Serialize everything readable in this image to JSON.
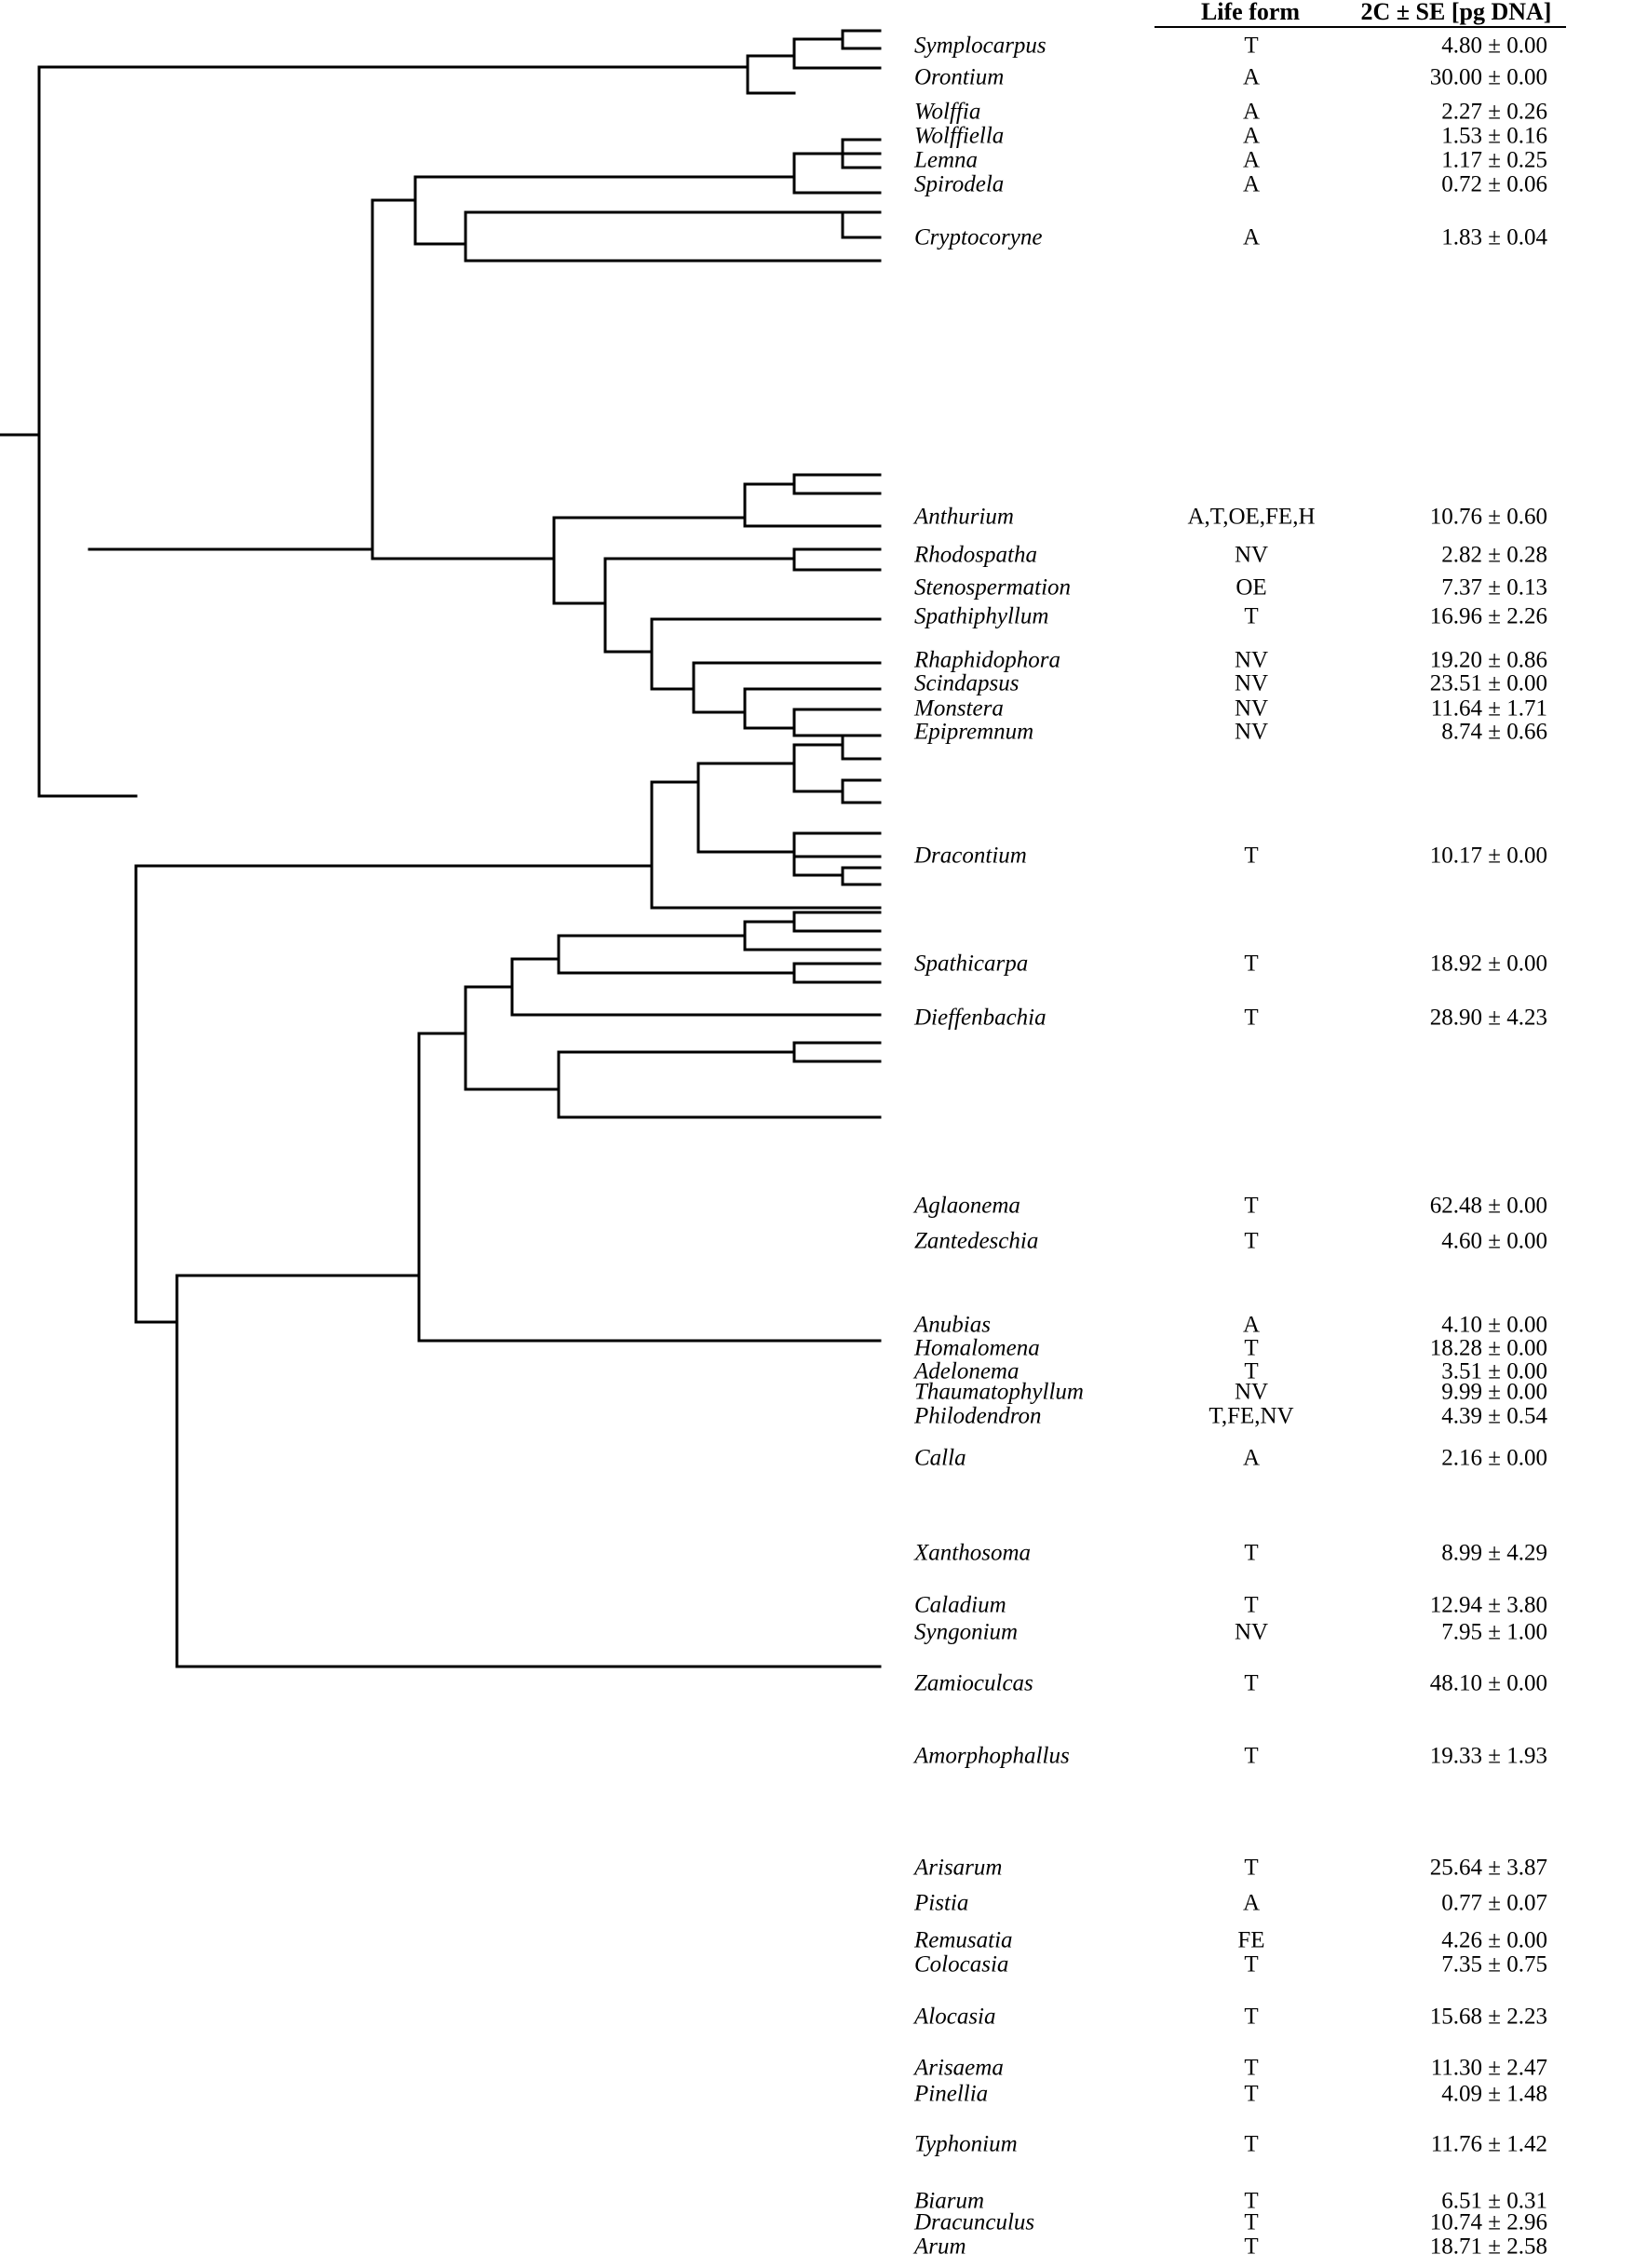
{
  "table_header": {
    "life_form": "Life form",
    "genome_size": "2C ± SE [pg DNA]"
  },
  "taxa": [
    {
      "genus": "Symplocarpus",
      "life_form": "T",
      "genome_size": "4.80 ± 0.00"
    },
    {
      "genus": "Orontium",
      "life_form": "A",
      "genome_size": "30.00 ± 0.00"
    },
    {
      "genus": "Wolffia",
      "life_form": "A",
      "genome_size": "2.27 ± 0.26"
    },
    {
      "genus": "Wolffiella",
      "life_form": "A",
      "genome_size": "1.53 ± 0.16"
    },
    {
      "genus": "Lemna",
      "life_form": "A",
      "genome_size": "1.17 ± 0.25"
    },
    {
      "genus": "Spirodela",
      "life_form": "A",
      "genome_size": "0.72 ± 0.06"
    },
    {
      "genus": "Cryptocoryne",
      "life_form": "A",
      "genome_size": "1.83 ± 0.04"
    },
    {
      "genus": "Anthurium",
      "life_form": "A,T,OE,FE,H",
      "genome_size": "10.76 ± 0.60"
    },
    {
      "genus": "Rhodospatha",
      "life_form": "NV",
      "genome_size": "2.82 ± 0.28"
    },
    {
      "genus": "Stenospermation",
      "life_form": "OE",
      "genome_size": "7.37 ± 0.13"
    },
    {
      "genus": "Spathiphyllum",
      "life_form": "T",
      "genome_size": "16.96 ± 2.26"
    },
    {
      "genus": "Rhaphidophora",
      "life_form": "NV",
      "genome_size": "19.20 ± 0.86"
    },
    {
      "genus": "Scindapsus",
      "life_form": "NV",
      "genome_size": "23.51 ± 0.00"
    },
    {
      "genus": "Monstera",
      "life_form": "NV",
      "genome_size": "11.64 ± 1.71"
    },
    {
      "genus": "Epipremnum",
      "life_form": "NV",
      "genome_size": "8.74 ± 0.66"
    },
    {
      "genus": "Dracontium",
      "life_form": "T",
      "genome_size": "10.17 ± 0.00"
    },
    {
      "genus": "Spathicarpa",
      "life_form": "T",
      "genome_size": "18.92 ± 0.00"
    },
    {
      "genus": "Dieffenbachia",
      "life_form": "T",
      "genome_size": "28.90 ± 4.23"
    },
    {
      "genus": "Aglaonema",
      "life_form": "T",
      "genome_size": "62.48 ± 0.00"
    },
    {
      "genus": "Zantedeschia",
      "life_form": "T",
      "genome_size": "4.60 ± 0.00"
    },
    {
      "genus": "Anubias",
      "life_form": "A",
      "genome_size": "4.10 ± 0.00"
    },
    {
      "genus": "Homalomena",
      "life_form": "T",
      "genome_size": "18.28 ± 0.00"
    },
    {
      "genus": "Adelonema",
      "life_form": "T",
      "genome_size": "3.51 ± 0.00"
    },
    {
      "genus": "Thaumatophyllum",
      "life_form": "NV",
      "genome_size": "9.99 ± 0.00"
    },
    {
      "genus": "Philodendron",
      "life_form": "T,FE,NV",
      "genome_size": "4.39 ± 0.54"
    },
    {
      "genus": "Calla",
      "life_form": "A",
      "genome_size": "2.16 ± 0.00"
    },
    {
      "genus": "Xanthosoma",
      "life_form": "T",
      "genome_size": "8.99 ± 4.29"
    },
    {
      "genus": "Caladium",
      "life_form": "T",
      "genome_size": "12.94 ± 3.80"
    },
    {
      "genus": "Syngonium",
      "life_form": "NV",
      "genome_size": "7.95 ± 1.00"
    },
    {
      "genus": "Zamioculcas",
      "life_form": "T",
      "genome_size": "48.10 ± 0.00"
    },
    {
      "genus": "Amorphophallus",
      "life_form": "T",
      "genome_size": "19.33 ± 1.93"
    },
    {
      "genus": "Arisarum",
      "life_form": "T",
      "genome_size": "25.64 ± 3.87"
    },
    {
      "genus": "Pistia",
      "life_form": "A",
      "genome_size": "0.77 ± 0.07"
    },
    {
      "genus": "Remusatia",
      "life_form": "FE",
      "genome_size": "4.26 ± 0.00"
    },
    {
      "genus": "Colocasia",
      "life_form": "T",
      "genome_size": "7.35 ± 0.75"
    },
    {
      "genus": "Alocasia",
      "life_form": "T",
      "genome_size": "15.68 ± 2.23"
    },
    {
      "genus": "Arisaema",
      "life_form": "T",
      "genome_size": "11.30 ± 2.47"
    },
    {
      "genus": "Pinellia",
      "life_form": "T",
      "genome_size": "4.09 ± 1.48"
    },
    {
      "genus": "Typhonium",
      "life_form": "T",
      "genome_size": "11.76 ± 1.42"
    },
    {
      "genus": "Biarum",
      "life_form": "T",
      "genome_size": "6.51 ± 0.31"
    },
    {
      "genus": "Dracunculus",
      "life_form": "T",
      "genome_size": "10.74 ± 2.96"
    },
    {
      "genus": "Arum",
      "life_form": "T",
      "genome_size": "18.71 ± 2.58"
    }
  ]
}
